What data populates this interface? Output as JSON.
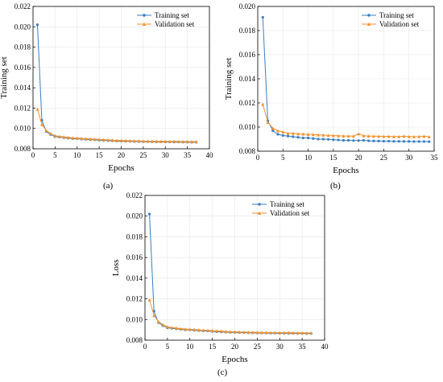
{
  "chart_data": [
    {
      "panel": "a",
      "caption": "(a)",
      "type": "line",
      "xlabel": "Epochs",
      "ylabel": "Training set",
      "xlim": [
        0,
        40
      ],
      "ylim": [
        0.008,
        0.022
      ],
      "xticks": [
        0,
        5,
        10,
        15,
        20,
        25,
        30,
        35,
        40
      ],
      "yticks": [
        0.008,
        0.01,
        0.012,
        0.014,
        0.016,
        0.018,
        0.02,
        0.022
      ],
      "ytick_labels": [
        "0.008",
        "0.010",
        "0.012",
        "0.014",
        "0.016",
        "0.018",
        "0.020",
        "0.022"
      ],
      "legend_position": "top-right",
      "grid": true,
      "series": [
        {
          "name": "Training set",
          "color": "#3a7fc0",
          "marker": "circle",
          "x": [
            1,
            2,
            3,
            4,
            5,
            6,
            7,
            8,
            9,
            10,
            11,
            12,
            13,
            14,
            15,
            16,
            17,
            18,
            19,
            20,
            21,
            22,
            23,
            24,
            25,
            26,
            27,
            28,
            29,
            30,
            31,
            32,
            33,
            34,
            35,
            36,
            37
          ],
          "values": [
            0.0202,
            0.0108,
            0.0097,
            0.0094,
            0.0092,
            0.00915,
            0.0091,
            0.00905,
            0.009,
            0.009,
            0.00895,
            0.00893,
            0.0089,
            0.00888,
            0.00885,
            0.00882,
            0.0088,
            0.00878,
            0.00876,
            0.00875,
            0.00874,
            0.00873,
            0.00872,
            0.00871,
            0.0087,
            0.0087,
            0.00869,
            0.00868,
            0.00868,
            0.00867,
            0.00867,
            0.00866,
            0.00866,
            0.00865,
            0.00865,
            0.00864,
            0.00864
          ]
        },
        {
          "name": "Validation set",
          "color": "#f0922f",
          "marker": "triangle",
          "x": [
            1,
            2,
            3,
            4,
            5,
            6,
            7,
            8,
            9,
            10,
            11,
            12,
            13,
            14,
            15,
            16,
            17,
            18,
            19,
            20,
            21,
            22,
            23,
            24,
            25,
            26,
            27,
            28,
            29,
            30,
            31,
            32,
            33,
            34,
            35,
            36,
            37
          ],
          "values": [
            0.0119,
            0.0104,
            0.0098,
            0.0095,
            0.0093,
            0.00922,
            0.00918,
            0.00912,
            0.00908,
            0.00905,
            0.00903,
            0.009,
            0.00897,
            0.00895,
            0.00893,
            0.0089,
            0.00888,
            0.00885,
            0.00883,
            0.00882,
            0.0088,
            0.00879,
            0.00878,
            0.00877,
            0.00876,
            0.00875,
            0.00874,
            0.00874,
            0.00873,
            0.00873,
            0.00872,
            0.00874,
            0.00872,
            0.00871,
            0.00871,
            0.0087,
            0.0087
          ]
        }
      ]
    },
    {
      "panel": "b",
      "caption": "(b)",
      "type": "line",
      "xlabel": "Epochs",
      "ylabel": "Training set",
      "xlim": [
        0,
        35
      ],
      "ylim": [
        0.008,
        0.02
      ],
      "xticks": [
        0,
        5,
        10,
        15,
        20,
        25,
        30,
        35
      ],
      "yticks": [
        0.008,
        0.01,
        0.012,
        0.014,
        0.016,
        0.018,
        0.02
      ],
      "ytick_labels": [
        "0.008",
        "0.010",
        "0.012",
        "0.014",
        "0.016",
        "0.018",
        "0.020"
      ],
      "legend_position": "top-right",
      "grid": true,
      "series": [
        {
          "name": "Training set",
          "color": "#3a7fc0",
          "marker": "circle",
          "x": [
            1,
            2,
            3,
            4,
            5,
            6,
            7,
            8,
            9,
            10,
            11,
            12,
            13,
            14,
            15,
            16,
            17,
            18,
            19,
            20,
            21,
            22,
            23,
            24,
            25,
            26,
            27,
            28,
            29,
            30,
            31,
            32,
            33,
            34
          ],
          "values": [
            0.0191,
            0.0105,
            0.0097,
            0.0094,
            0.0093,
            0.00925,
            0.0092,
            0.00915,
            0.0091,
            0.0091,
            0.00905,
            0.009,
            0.009,
            0.00898,
            0.00895,
            0.00893,
            0.0089,
            0.0089,
            0.00888,
            0.00888,
            0.0089,
            0.00886,
            0.00885,
            0.00884,
            0.00883,
            0.00883,
            0.00882,
            0.00882,
            0.00881,
            0.00881,
            0.0088,
            0.0088,
            0.0088,
            0.00879
          ]
        },
        {
          "name": "Validation set",
          "color": "#f0922f",
          "marker": "triangle",
          "x": [
            1,
            2,
            3,
            4,
            5,
            6,
            7,
            8,
            9,
            10,
            11,
            12,
            13,
            14,
            15,
            16,
            17,
            18,
            19,
            20,
            21,
            22,
            23,
            24,
            25,
            26,
            27,
            28,
            29,
            30,
            31,
            32,
            33,
            34
          ],
          "values": [
            0.0119,
            0.0104,
            0.0099,
            0.0097,
            0.0096,
            0.0095,
            0.00948,
            0.00945,
            0.00943,
            0.0094,
            0.00938,
            0.00936,
            0.00934,
            0.00932,
            0.0093,
            0.00928,
            0.00927,
            0.00926,
            0.00925,
            0.00945,
            0.00928,
            0.00926,
            0.00925,
            0.00924,
            0.00923,
            0.00923,
            0.00922,
            0.00922,
            0.00925,
            0.00922,
            0.00921,
            0.00922,
            0.00924,
            0.0092
          ]
        }
      ]
    },
    {
      "panel": "c",
      "caption": "(c)",
      "type": "line",
      "xlabel": "Epochs",
      "ylabel": "Loss",
      "xlim": [
        0,
        40
      ],
      "ylim": [
        0.008,
        0.022
      ],
      "xticks": [
        0,
        5,
        10,
        15,
        20,
        25,
        30,
        35,
        40
      ],
      "yticks": [
        0.008,
        0.01,
        0.012,
        0.014,
        0.016,
        0.018,
        0.02,
        0.022
      ],
      "ytick_labels": [
        "0.008",
        "0.010",
        "0.012",
        "0.014",
        "0.016",
        "0.018",
        "0.020",
        "0.022"
      ],
      "legend_position": "top-right",
      "grid": true,
      "series": [
        {
          "name": "Training set",
          "color": "#3a7fc0",
          "marker": "circle",
          "x": [
            1,
            2,
            3,
            4,
            5,
            6,
            7,
            8,
            9,
            10,
            11,
            12,
            13,
            14,
            15,
            16,
            17,
            18,
            19,
            20,
            21,
            22,
            23,
            24,
            25,
            26,
            27,
            28,
            29,
            30,
            31,
            32,
            33,
            34,
            35,
            36,
            37
          ],
          "values": [
            0.0202,
            0.0108,
            0.0097,
            0.0094,
            0.0092,
            0.00915,
            0.0091,
            0.00905,
            0.009,
            0.009,
            0.00895,
            0.00893,
            0.0089,
            0.00888,
            0.00885,
            0.00882,
            0.0088,
            0.00878,
            0.00876,
            0.00875,
            0.00874,
            0.00873,
            0.00872,
            0.00871,
            0.0087,
            0.0087,
            0.00869,
            0.00868,
            0.00868,
            0.00867,
            0.00867,
            0.00866,
            0.00866,
            0.00865,
            0.00865,
            0.00864,
            0.00864
          ]
        },
        {
          "name": "Validation set",
          "color": "#f0922f",
          "marker": "triangle",
          "x": [
            1,
            2,
            3,
            4,
            5,
            6,
            7,
            8,
            9,
            10,
            11,
            12,
            13,
            14,
            15,
            16,
            17,
            18,
            19,
            20,
            21,
            22,
            23,
            24,
            25,
            26,
            27,
            28,
            29,
            30,
            31,
            32,
            33,
            34,
            35,
            36,
            37
          ],
          "values": [
            0.0119,
            0.0104,
            0.0098,
            0.0095,
            0.0093,
            0.00922,
            0.00918,
            0.00912,
            0.00908,
            0.00905,
            0.00903,
            0.009,
            0.00897,
            0.00895,
            0.00893,
            0.0089,
            0.00888,
            0.00885,
            0.00883,
            0.00882,
            0.0088,
            0.00879,
            0.00878,
            0.00877,
            0.00876,
            0.00875,
            0.00874,
            0.00874,
            0.00873,
            0.00873,
            0.00872,
            0.00874,
            0.00872,
            0.00871,
            0.00871,
            0.0087,
            0.0087
          ]
        }
      ]
    }
  ]
}
